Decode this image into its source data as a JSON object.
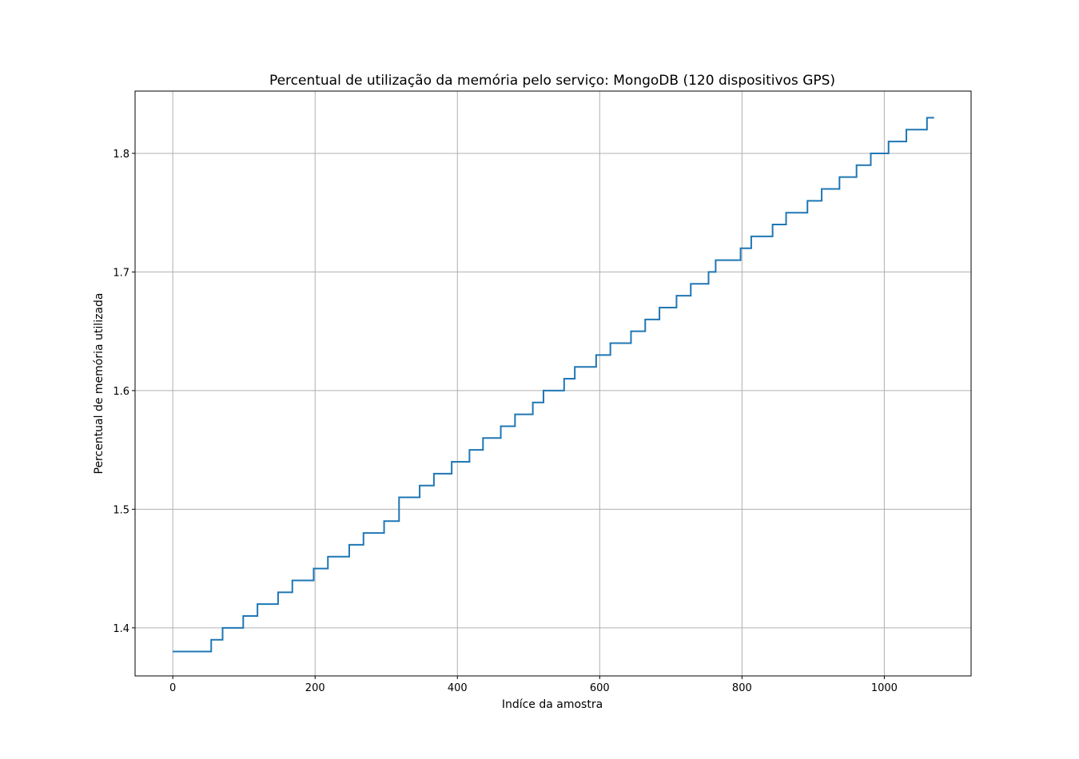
{
  "chart_data": {
    "type": "line",
    "title": "Percentual de utilização da memória pelo serviço: MongoDB (120 dispositivos GPS)",
    "xlabel": "Indíce da amostra",
    "ylabel": "Percentual de memória utilizada",
    "xlim": [
      -53,
      1122
    ],
    "ylim": [
      1.3595,
      1.8525
    ],
    "xticks": [
      0,
      200,
      400,
      600,
      800,
      1000
    ],
    "xtick_labels": [
      "0",
      "200",
      "400",
      "600",
      "800",
      "1000"
    ],
    "yticks": [
      1.4,
      1.5,
      1.6,
      1.7,
      1.8
    ],
    "ytick_labels": [
      "1.4",
      "1.5",
      "1.6",
      "1.7",
      "1.8"
    ],
    "grid": true,
    "colors": {
      "line": "#1f77b4",
      "grid": "#b0b0b0",
      "axes": "#000000"
    },
    "series": [
      {
        "step": "post",
        "x": [
          0,
          54,
          70,
          99,
          119,
          148,
          168,
          198,
          218,
          248,
          268,
          297,
          318,
          347,
          367,
          392,
          417,
          436,
          461,
          481,
          506,
          521,
          550,
          565,
          595,
          615,
          644,
          664,
          684,
          708,
          728,
          753,
          763,
          798,
          813,
          843,
          862,
          892,
          912,
          937,
          961,
          981,
          1006,
          1031,
          1060,
          1070
        ],
        "y": [
          1.38,
          1.39,
          1.4,
          1.41,
          1.42,
          1.43,
          1.44,
          1.45,
          1.46,
          1.47,
          1.48,
          1.49,
          1.51,
          1.52,
          1.53,
          1.54,
          1.55,
          1.56,
          1.57,
          1.58,
          1.59,
          1.6,
          1.61,
          1.62,
          1.63,
          1.64,
          1.65,
          1.66,
          1.67,
          1.68,
          1.69,
          1.7,
          1.71,
          1.72,
          1.73,
          1.74,
          1.75,
          1.76,
          1.77,
          1.78,
          1.79,
          1.8,
          1.81,
          1.82,
          1.83,
          1.83
        ]
      }
    ]
  }
}
